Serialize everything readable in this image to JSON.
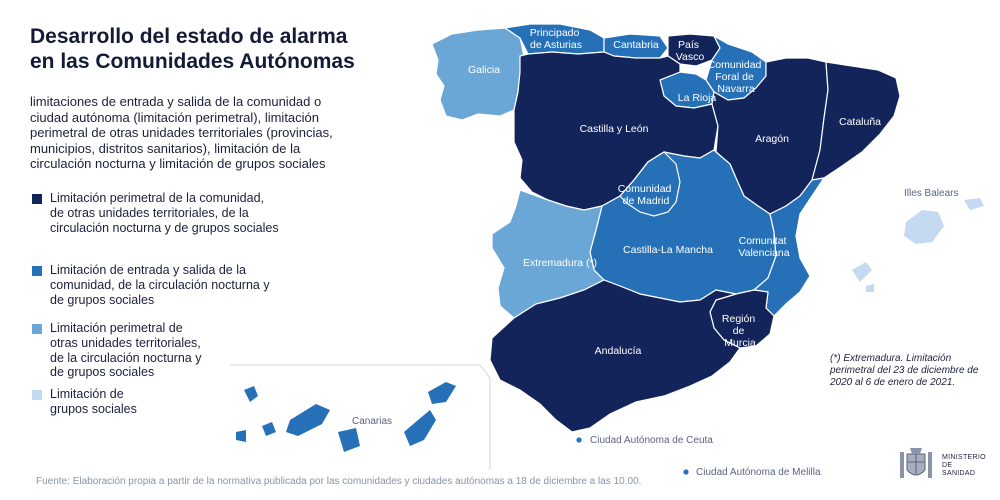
{
  "title_line1": "Desarrollo del estado de alarma",
  "title_line2": "en las Comunidades Autónomas",
  "subtitle": "limitaciones de entrada y salida de la comunidad o ciudad autónoma (limitación perimetral), limitación perimetral de otras unidades territoriales (provincias, municipios, distritos sanitarios), limitación de la circulación nocturna y limitación de grupos sociales",
  "colors": {
    "dark_navy": "#12245a",
    "mid_blue": "#2670b8",
    "light_blue": "#6aa6d6",
    "pale_blue": "#c4daf0"
  },
  "legend": [
    {
      "color": "#12245a",
      "label": "Limitación perimetral de la comunidad, de otras unidades territoriales, de la circulación nocturna y de grupos sociales"
    },
    {
      "color": "#2670b8",
      "label": "Limitación de entrada y salida de la comunidad, de la circulación nocturna y de grupos sociales"
    },
    {
      "color": "#6aa6d6",
      "label": "Limitación perimetral de otras unidades territoriales, de la circulación nocturna y de grupos sociales"
    },
    {
      "color": "#c4daf0",
      "label": "Limitación de grupos sociales"
    }
  ],
  "regions": {
    "galicia": "Galicia",
    "asturias": "Principado de Asturias",
    "cantabria": "Cantabria",
    "pais_vasco": "País Vasco",
    "navarra": "Comunidad Foral de Navarra",
    "la_rioja": "La Rioja",
    "castilla_leon": "Castilla y León",
    "aragon": "Aragón",
    "cataluna": "Cataluña",
    "madrid": "Comunidad de Madrid",
    "castilla_mancha": "Castilla-La Mancha",
    "valenciana": "Comunitat Valenciana",
    "extremadura": "Extremadura (*)",
    "andalucia": "Andalucía",
    "murcia": "Región de Murcia",
    "baleares": "Illes Balears",
    "canarias": "Canarias",
    "ceuta": "Ciudad Autónoma de Ceuta",
    "melilla": "Ciudad Autónoma de Melilla"
  },
  "note": "(*) Extremadura. Limitación perimetral del 23 de diciembre de 2020 al 6 de enero de 2021.",
  "source": "Fuente: Elaboración propia a partir de la normativa publicada por las comunidades y ciudades autónomas a 18 de diciembre a las 10.00.",
  "ministry": "MINISTERIO DE SANIDAD"
}
